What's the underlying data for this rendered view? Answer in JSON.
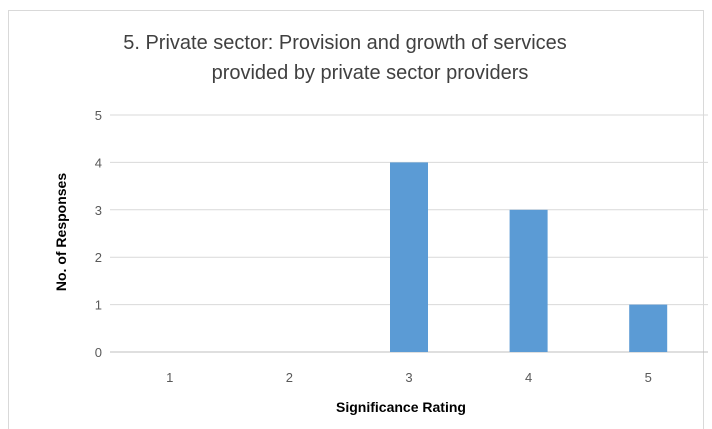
{
  "chart_data": {
    "type": "bar",
    "title": [
      "5. Private sector: Provision and growth of services",
      "provided by private sector providers"
    ],
    "xlabel": "Significance Rating",
    "ylabel": "No. of Responses",
    "categories": [
      "1",
      "2",
      "3",
      "4",
      "5"
    ],
    "values": [
      0,
      0,
      4,
      3,
      1
    ],
    "ylim": [
      0,
      5
    ],
    "yticks": [
      "0",
      "1",
      "2",
      "3",
      "4",
      "5"
    ],
    "grid": true,
    "colors": {
      "bar": "#5b9bd5"
    }
  }
}
